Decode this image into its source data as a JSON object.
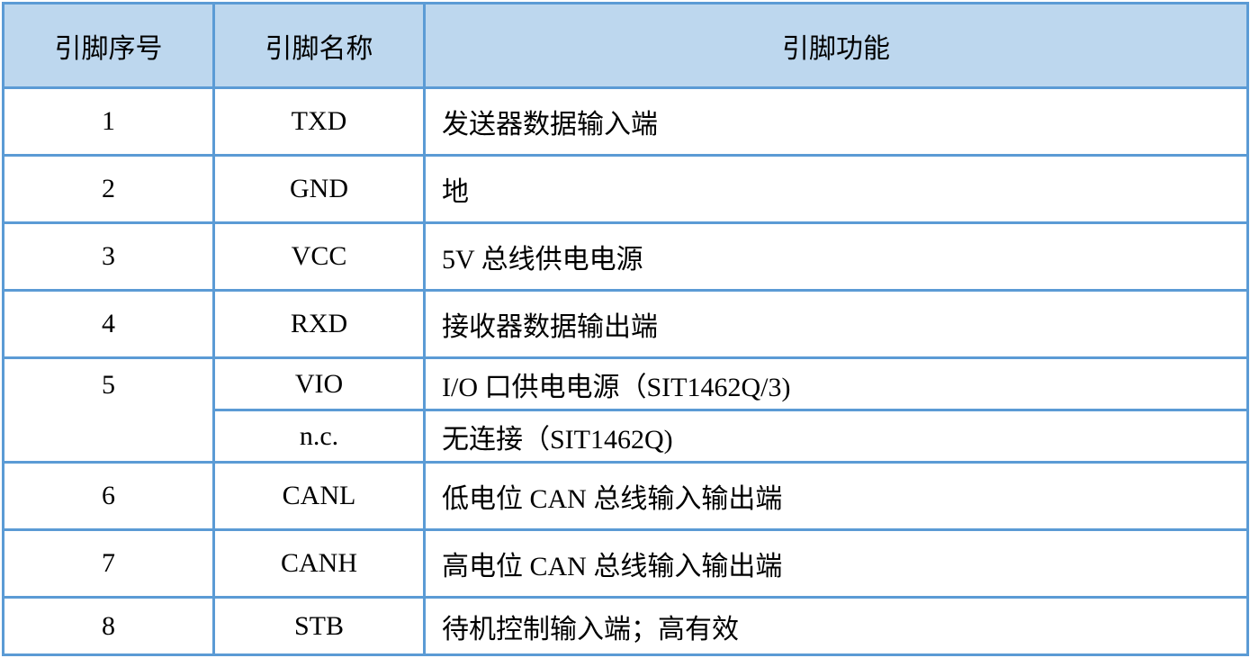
{
  "headers": [
    "引脚序号",
    "引脚名称",
    "引脚功能"
  ],
  "rows": [
    {
      "num": "1",
      "name": "TXD",
      "func": "发送器数据输入端"
    },
    {
      "num": "2",
      "name": "GND",
      "func": "地"
    },
    {
      "num": "3",
      "name": "VCC",
      "func": "5V 总线供电电源"
    },
    {
      "num": "4",
      "name": "RXD",
      "func": "接收器数据输出端"
    },
    {
      "num": "5",
      "name": "VIO",
      "func": "I/O 口供电电源（SIT1462Q/3)"
    },
    {
      "name": "n.c.",
      "func": "无连接（SIT1462Q)"
    },
    {
      "num": "6",
      "name": "CANL",
      "func": "低电位 CAN 总线输入输出端"
    },
    {
      "num": "7",
      "name": "CANH",
      "func": "高电位 CAN 总线输入输出端"
    },
    {
      "num": "8",
      "name": "STB",
      "func": "待机控制输入端；高有效"
    }
  ],
  "colors": {
    "header_bg": "#bdd7ee",
    "border": "#5b9bd5"
  }
}
